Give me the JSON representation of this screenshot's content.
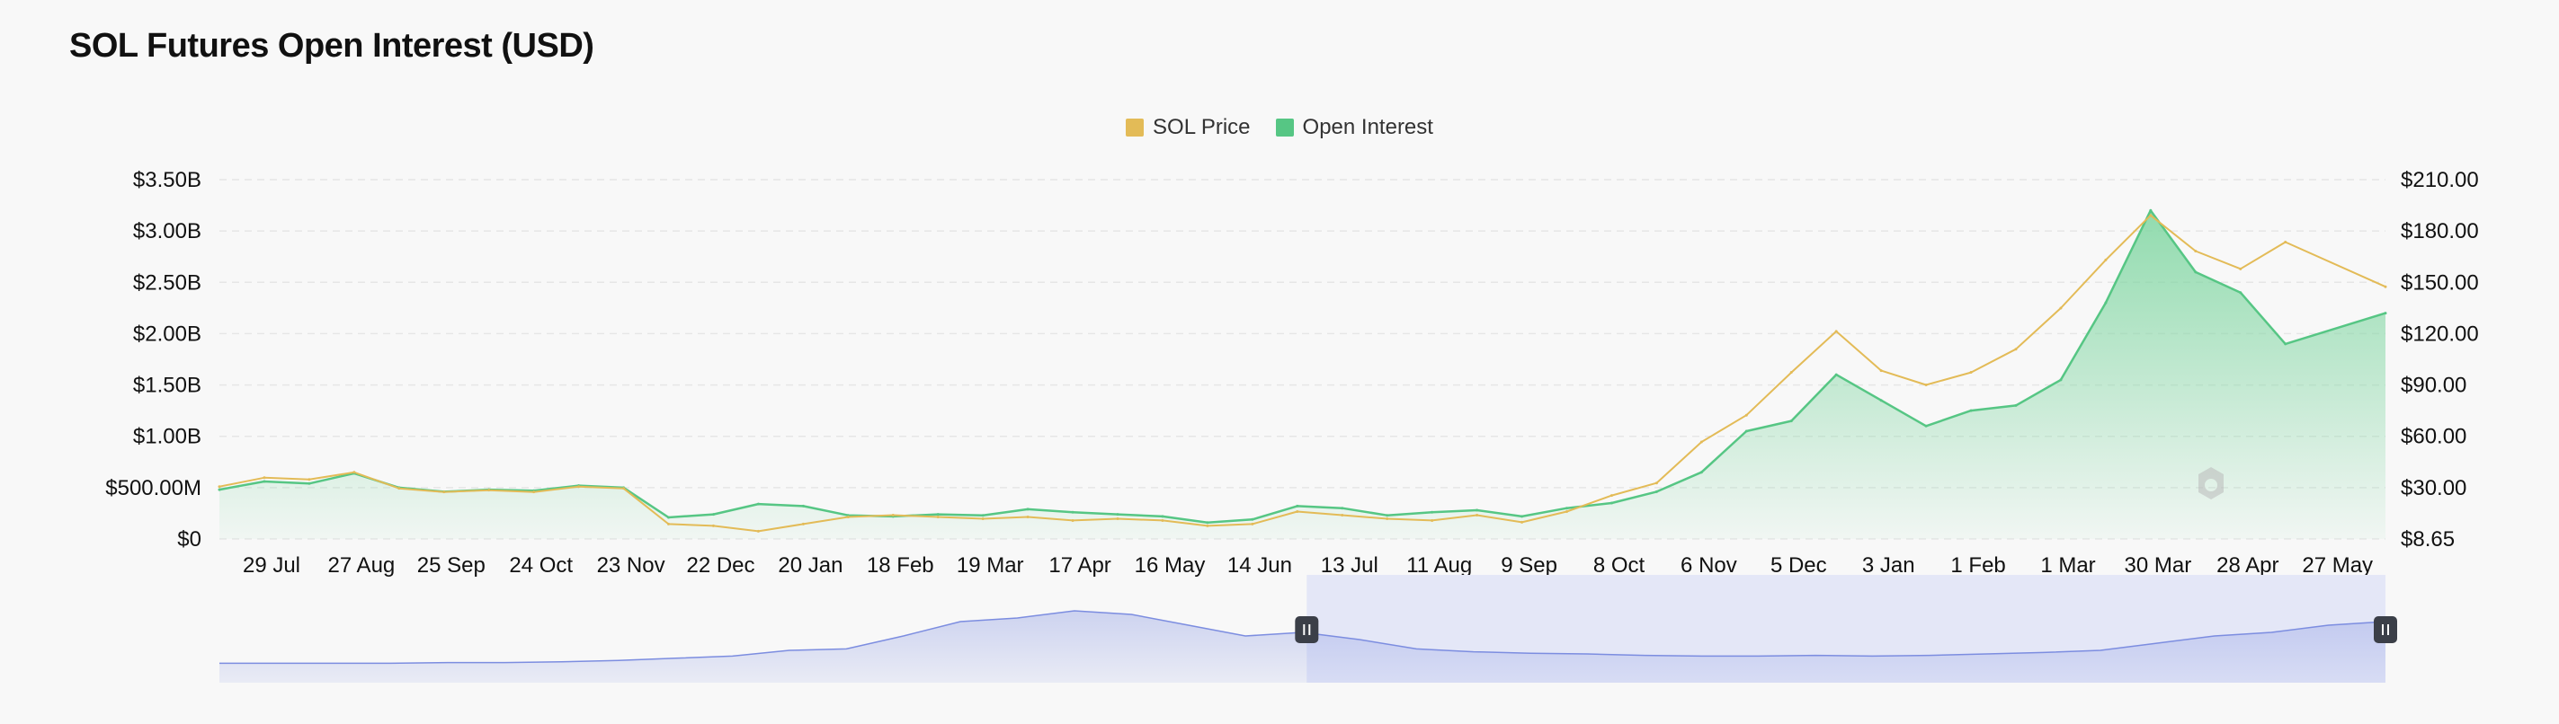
{
  "title": "SOL Futures Open Interest (USD)",
  "colors": {
    "price": "#e3bb57",
    "oi": "#56c684",
    "oi_fill": "#7fd6a1",
    "navigator_line": "#7c8de0",
    "navigator_fill": "#dde2f6",
    "navigator_window": "#e4e7f7",
    "handle": "#3b3f48"
  },
  "chart_data": {
    "type": "line",
    "title": "SOL Futures Open Interest (USD)",
    "legend": {
      "position": "top-center",
      "entries": [
        "SOL Price",
        "Open Interest"
      ]
    },
    "grid": true,
    "x_ticks": [
      "29 Jul",
      "27 Aug",
      "25 Sep",
      "24 Oct",
      "23 Nov",
      "22 Dec",
      "20 Jan",
      "18 Feb",
      "19 Mar",
      "17 Apr",
      "16 May",
      "14 Jun",
      "13 Jul",
      "11 Aug",
      "9 Sep",
      "8 Oct",
      "6 Nov",
      "5 Dec",
      "3 Jan",
      "1 Feb",
      "1 Mar",
      "30 Mar",
      "28 Apr",
      "27 May"
    ],
    "y_left": {
      "label": "Open Interest",
      "ticks": [
        "$0",
        "$500.00M",
        "$1.00B",
        "$1.50B",
        "$2.00B",
        "$2.50B",
        "$3.00B",
        "$3.50B"
      ],
      "range": [
        0,
        3500000000
      ]
    },
    "y_right": {
      "label": "SOL Price",
      "ticks": [
        "$8.65",
        "$30.00",
        "$60.00",
        "$90.00",
        "$120.00",
        "$150.00",
        "$180.00",
        "$210.00"
      ],
      "range": [
        8.65,
        210
      ]
    },
    "series": [
      {
        "name": "Open Interest",
        "axis": "left",
        "fill": true,
        "x_index": [
          0,
          0.5,
          1,
          1.5,
          2,
          2.5,
          3,
          3.5,
          4,
          4.5,
          5,
          5.5,
          6,
          6.5,
          7,
          7.5,
          8,
          8.5,
          9,
          9.5,
          10,
          10.5,
          11,
          11.5,
          12,
          12.5,
          13,
          13.5,
          14,
          14.5,
          15,
          15.5,
          16,
          16.5,
          17,
          17.5,
          18,
          18.5,
          19,
          19.5,
          20,
          20.5,
          21,
          21.5,
          22,
          22.5,
          23,
          23.5
        ],
        "values": [
          480000000,
          560000000,
          540000000,
          640000000,
          500000000,
          460000000,
          480000000,
          470000000,
          520000000,
          500000000,
          210000000,
          240000000,
          340000000,
          320000000,
          230000000,
          220000000,
          240000000,
          230000000,
          290000000,
          260000000,
          240000000,
          220000000,
          160000000,
          190000000,
          320000000,
          300000000,
          230000000,
          260000000,
          280000000,
          220000000,
          300000000,
          350000000,
          460000000,
          650000000,
          1050000000,
          1150000000,
          1600000000,
          1350000000,
          1100000000,
          1250000000,
          1300000000,
          1550000000,
          2300000000,
          3200000000,
          2600000000,
          2400000000,
          1900000000,
          2200000000
        ]
      },
      {
        "name": "SOL Price",
        "axis": "right",
        "fill": false,
        "x_index": [
          0,
          0.5,
          1,
          1.5,
          2,
          2.5,
          3,
          3.5,
          4,
          4.5,
          5,
          5.5,
          6,
          6.5,
          7,
          7.5,
          8,
          8.5,
          9,
          9.5,
          10,
          10.5,
          11,
          11.5,
          12,
          12.5,
          13,
          13.5,
          14,
          14.5,
          15,
          15.5,
          16,
          16.5,
          17,
          17.5,
          18,
          18.5,
          19,
          19.5,
          20,
          20.5,
          21,
          21.5,
          22,
          22.5,
          23,
          23.5
        ],
        "values": [
          38,
          43,
          42,
          46,
          37,
          35,
          36,
          35,
          38,
          37,
          17,
          16,
          13,
          17,
          21,
          22,
          21,
          20,
          21,
          19,
          20,
          19,
          16,
          17,
          24,
          22,
          20,
          19,
          22,
          18,
          24,
          33,
          40,
          63,
          78,
          102,
          125,
          103,
          95,
          102,
          115,
          138,
          165,
          190,
          170,
          160,
          175,
          150
        ]
      }
    ]
  },
  "navigator": {
    "values": [
      0.02,
      0.02,
      0.02,
      0.02,
      0.03,
      0.03,
      0.04,
      0.06,
      0.09,
      0.12,
      0.2,
      0.22,
      0.4,
      0.6,
      0.65,
      0.75,
      0.7,
      0.55,
      0.4,
      0.45,
      0.35,
      0.22,
      0.18,
      0.16,
      0.15,
      0.13,
      0.12,
      0.12,
      0.13,
      0.12,
      0.13,
      0.15,
      0.17,
      0.2,
      0.3,
      0.4,
      0.45,
      0.55,
      0.6
    ],
    "window_start": 0.502,
    "window_end": 1.0
  }
}
